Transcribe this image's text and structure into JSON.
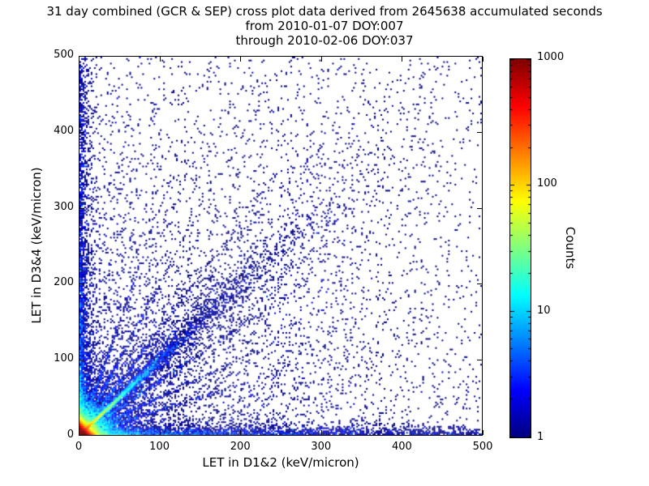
{
  "chart_data": {
    "type": "scatter",
    "title_lines": [
      "31 day combined (GCR & SEP) cross plot data derived from 2645638 accumulated seconds",
      "from 2010-01-07 DOY:007",
      "through 2010-02-06 DOY:037"
    ],
    "xlabel": "LET in D1&2 (keV/micron)",
    "ylabel": "LET in D3&4 (keV/micron)",
    "xlim": [
      0,
      500
    ],
    "ylim": [
      0,
      500
    ],
    "xticks": [
      0,
      100,
      200,
      300,
      400,
      500
    ],
    "yticks": [
      0,
      100,
      200,
      300,
      400,
      500
    ],
    "grid": false,
    "point_single_count_color": "#00007f",
    "colorbar": {
      "label": "Counts",
      "scale": "log",
      "min": 1,
      "max": 1000,
      "ticks": [
        1,
        10,
        100,
        1000
      ],
      "colormap": "jet",
      "position": "right"
    },
    "distribution": {
      "seed": 42,
      "bins": 250,
      "components": [
        {
          "type": "exp2d",
          "n": 40000,
          "mean_x": 4,
          "mean_y": 4
        },
        {
          "type": "exp2d",
          "n": 8000,
          "mean_x": 15,
          "mean_y": 15
        },
        {
          "type": "exp2d",
          "n": 4000,
          "mean_x": 180,
          "mean_y": 180
        },
        {
          "type": "diag",
          "n": 3000,
          "mean_t": 25,
          "sigma_frac": 0.02,
          "sigma_min": 0.8
        },
        {
          "type": "diag",
          "n": 2500,
          "mean_t": 80,
          "sigma_frac": 0.05,
          "sigma_min": 1.2
        },
        {
          "type": "diag",
          "n": 2200,
          "mean_t": 150,
          "sigma_frac": 0.18,
          "sigma_min": 2
        },
        {
          "type": "axis_band",
          "n": 2600,
          "axis": "x",
          "mean_along": 150,
          "frac_uniform": 0.3,
          "mean_perp": 5
        },
        {
          "type": "axis_band",
          "n": 2400,
          "axis": "y",
          "mean_along": 150,
          "frac_uniform": 0.3,
          "mean_perp": 5
        },
        {
          "type": "ray",
          "n": 430,
          "slope": 0.33,
          "mean_t": 70,
          "sigma": 1.5
        },
        {
          "type": "ray",
          "n": 430,
          "slope": 0.5,
          "mean_t": 70,
          "sigma": 1.5
        },
        {
          "type": "ray",
          "n": 400,
          "slope": 0.72,
          "mean_t": 80,
          "sigma": 1.5
        },
        {
          "type": "ray",
          "n": 400,
          "slope": 1.4,
          "mean_t": 80,
          "sigma": 1.5
        },
        {
          "type": "ray",
          "n": 430,
          "slope": 2.0,
          "mean_t": 70,
          "sigma": 1.5
        },
        {
          "type": "ray",
          "n": 430,
          "slope": 3.0,
          "mean_t": 70,
          "sigma": 1.5
        },
        {
          "type": "bg_uniform",
          "n": 1600
        }
      ]
    }
  }
}
